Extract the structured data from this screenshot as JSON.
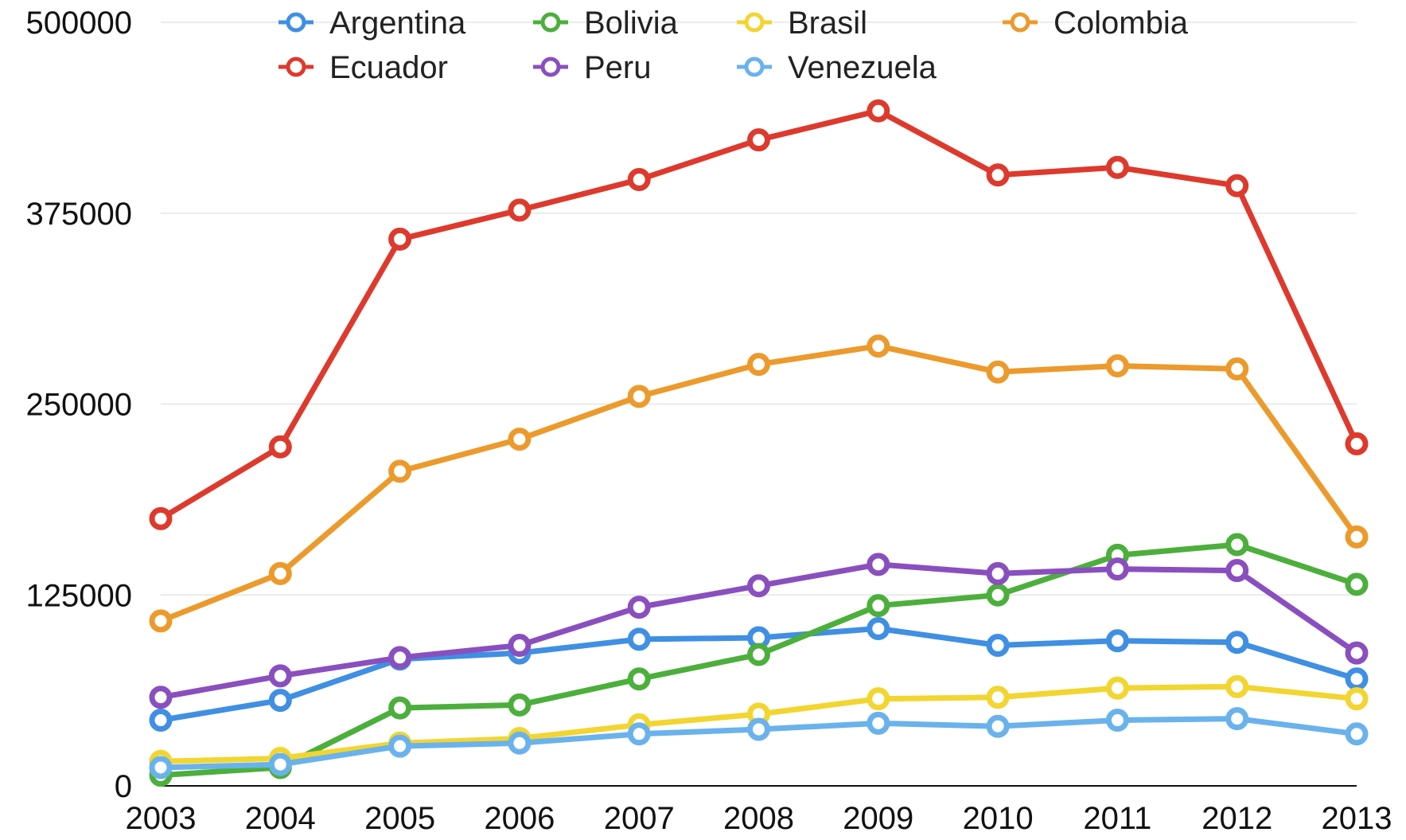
{
  "chart_data": {
    "type": "line",
    "title": "",
    "xlabel": "",
    "ylabel": "",
    "categories": [
      "2003",
      "2004",
      "2005",
      "2006",
      "2007",
      "2008",
      "2009",
      "2010",
      "2011",
      "2012",
      "2013"
    ],
    "ylim": [
      0,
      500000
    ],
    "yticks": [
      "0",
      "125000",
      "250000",
      "375000",
      "500000"
    ],
    "grid": true,
    "legend_position": "top",
    "series": [
      {
        "name": "Argentina",
        "color": "#3f8fe3",
        "values": [
          43000,
          56000,
          83000,
          87000,
          96000,
          97000,
          103000,
          92000,
          95000,
          94000,
          70000
        ]
      },
      {
        "name": "Bolivia",
        "color": "#4caf3c",
        "values": [
          7000,
          12000,
          51000,
          53000,
          70000,
          86000,
          118000,
          125000,
          151000,
          158000,
          132000
        ]
      },
      {
        "name": "Brasil",
        "color": "#f2d531",
        "values": [
          16000,
          18000,
          28000,
          31000,
          40000,
          47000,
          57000,
          58000,
          64000,
          65000,
          57000
        ]
      },
      {
        "name": "Colombia",
        "color": "#ec9a2c",
        "values": [
          108000,
          139000,
          206000,
          227000,
          255000,
          276000,
          288000,
          271000,
          275000,
          273000,
          163000
        ]
      },
      {
        "name": "Ecuador",
        "color": "#dd3a2d",
        "values": [
          175000,
          222000,
          358000,
          377000,
          397000,
          423000,
          442000,
          400000,
          405000,
          393000,
          224000
        ]
      },
      {
        "name": "Peru",
        "color": "#8a4fbf",
        "values": [
          58000,
          72000,
          84000,
          92000,
          117000,
          131000,
          145000,
          139000,
          142000,
          141000,
          87000
        ]
      },
      {
        "name": "Venezuela",
        "color": "#6ab2ec",
        "values": [
          12000,
          14000,
          26000,
          28000,
          34000,
          37000,
          41000,
          39000,
          43000,
          44000,
          34000
        ]
      }
    ]
  }
}
